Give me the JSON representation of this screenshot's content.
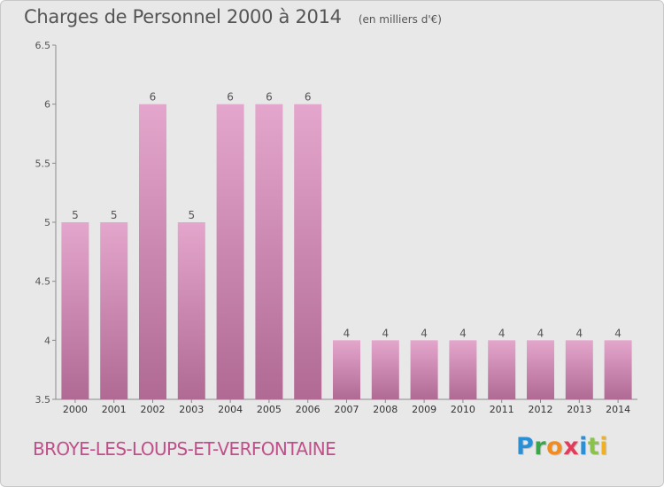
{
  "chart_data": {
    "type": "bar",
    "title": "Charges de Personnel 2000 à 2014",
    "subtitle": "(en milliers d'€)",
    "categories": [
      "2000",
      "2001",
      "2002",
      "2003",
      "2004",
      "2005",
      "2006",
      "2007",
      "2008",
      "2009",
      "2010",
      "2011",
      "2012",
      "2013",
      "2014"
    ],
    "values": [
      5,
      5,
      6,
      5,
      6,
      6,
      6,
      4,
      4,
      4,
      4,
      4,
      4,
      4,
      4
    ],
    "ylim": [
      3.5,
      6.5
    ],
    "yticks": [
      "3.5",
      "4",
      "4.5",
      "5",
      "5.5",
      "6",
      "6.5"
    ],
    "grid": false,
    "bar_color_top": "#e4a6cc",
    "bar_color_bottom": "#b06a94"
  },
  "footer": {
    "commune": "BROYE-LES-LOUPS-ET-VERFONTAINE",
    "brand": "Proxiti",
    "brand_letters": [
      {
        "ch": "P",
        "color": "#2b8fd6"
      },
      {
        "ch": "r",
        "color": "#3aa64a"
      },
      {
        "ch": "o",
        "color": "#f28c1e"
      },
      {
        "ch": "x",
        "color": "#e23c5a"
      },
      {
        "ch": "i",
        "color": "#2b8fd6"
      },
      {
        "ch": "t",
        "color": "#8bc34a"
      },
      {
        "ch": "i",
        "color": "#f2b01e"
      }
    ]
  }
}
